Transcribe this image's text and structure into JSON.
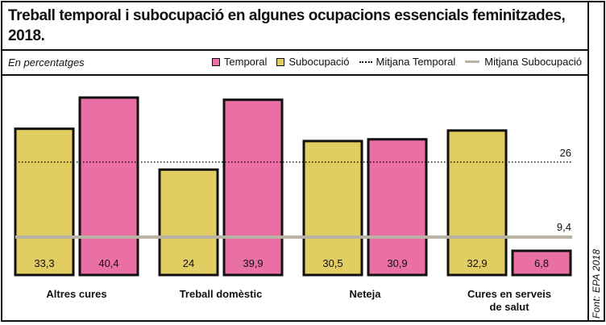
{
  "title": "Treball temporal i subocupació en algunes ocupacions essencials feminitzades, 2018.",
  "subtitle": "En percentatges",
  "source": "Font: EPA 2018",
  "legend": {
    "temporal": "Temporal",
    "subocupacio": "Subocupació",
    "mitjana_temporal": "Mitjana Temporal",
    "mitjana_subocupacio": "Mitjana Subocupació"
  },
  "colors": {
    "temporal": "#e96fa4",
    "subocupacio": "#e2cd62",
    "mitjana_subocupacio": "#b8b3a5",
    "outline": "#111111"
  },
  "chart_data": {
    "type": "bar",
    "title": "Treball temporal i subocupació en algunes ocupacions essencials feminitzades, 2018.",
    "subtitle": "En percentatges",
    "xlabel": "",
    "ylabel": "",
    "categories": [
      "Altres cures",
      "Treball domèstic",
      "Neteja",
      "Cures en serveis de salut"
    ],
    "category_lines": [
      [
        "Altres cures"
      ],
      [
        "Treball domèstic"
      ],
      [
        "Neteja"
      ],
      [
        "Cures en serveis",
        "de salut"
      ]
    ],
    "series": [
      {
        "name": "Subocupació",
        "values": [
          33.3,
          24,
          30.5,
          32.9
        ],
        "labels": [
          "33,3",
          "24",
          "30,5",
          "32,9"
        ]
      },
      {
        "name": "Temporal",
        "values": [
          40.4,
          39.9,
          30.9,
          6.8
        ],
        "labels": [
          "40,4",
          "39,9",
          "30,9",
          "6,8"
        ]
      }
    ],
    "reference_lines": [
      {
        "name": "Mitjana Temporal",
        "value": 26,
        "label": "26",
        "style": "dotted"
      },
      {
        "name": "Mitjana Subocupació",
        "value": 9.4,
        "label": "9,4",
        "style": "solid"
      }
    ],
    "grid": false,
    "legend_position": "top-right"
  }
}
